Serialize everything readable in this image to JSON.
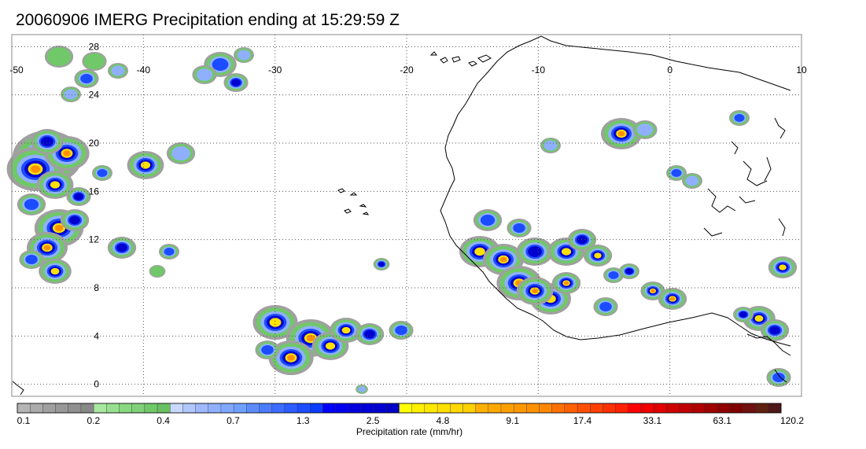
{
  "title": "20060906 IMERG Precipitation ending at 15:29:59 Z",
  "map": {
    "lon_range": [
      -50,
      10
    ],
    "lat_range": [
      -1,
      29
    ],
    "lon_ticks": [
      "-50",
      "-40",
      "-30",
      "-20",
      "-10",
      "0",
      "10"
    ],
    "lat_ticks": [
      "28",
      "24",
      "20",
      "16",
      "12",
      "8",
      "4",
      "0"
    ],
    "grid": true,
    "grid_style": "dotted"
  },
  "colorbar": {
    "title": "Precipitation rate (mm/hr)",
    "tick_labels": [
      "0.1",
      "0.2",
      "0.4",
      "0.7",
      "1.3",
      "2.5",
      "4.8",
      "9.1",
      "17.4",
      "33.1",
      "63.1",
      "120.2"
    ],
    "colors": [
      "#b4b4b4",
      "#aaaaaa",
      "#a0a0a0",
      "#989898",
      "#909090",
      "#888888",
      "#a8e8a0",
      "#98e090",
      "#88d880",
      "#80d078",
      "#70c868",
      "#68c060",
      "#c8d8ff",
      "#b0c8ff",
      "#a0b8ff",
      "#90b0ff",
      "#80a8ff",
      "#70a0ff",
      "#5c8cff",
      "#4c7cff",
      "#3c6cff",
      "#2c5cff",
      "#1c4cff",
      "#0c3cff",
      "#0000ff",
      "#0000f0",
      "#0000e0",
      "#0000d8",
      "#0000d0",
      "#0000c8",
      "#ffff00",
      "#fff000",
      "#ffe800",
      "#ffe000",
      "#ffd800",
      "#ffd000",
      "#ffb000",
      "#ffa800",
      "#ffa000",
      "#ff9800",
      "#ff9000",
      "#ff8800",
      "#ff7000",
      "#ff6000",
      "#ff5000",
      "#ff4000",
      "#ff3000",
      "#ff2000",
      "#ff0000",
      "#f00000",
      "#e00000",
      "#d00000",
      "#c00000",
      "#b00000",
      "#a00000",
      "#900000",
      "#800000",
      "#701010",
      "#602010",
      "#501818"
    ]
  },
  "colors": {
    "rain_light": "#a0a0a0",
    "rain_green": "#70c868",
    "rain_lightblue": "#90b0ff",
    "rain_blue": "#1c4cff",
    "rain_darkblue": "#0000d0",
    "rain_yellow": "#ffe000",
    "rain_orange": "#ff9000",
    "rain_red": "#ff2000",
    "coastline": "#000000"
  }
}
